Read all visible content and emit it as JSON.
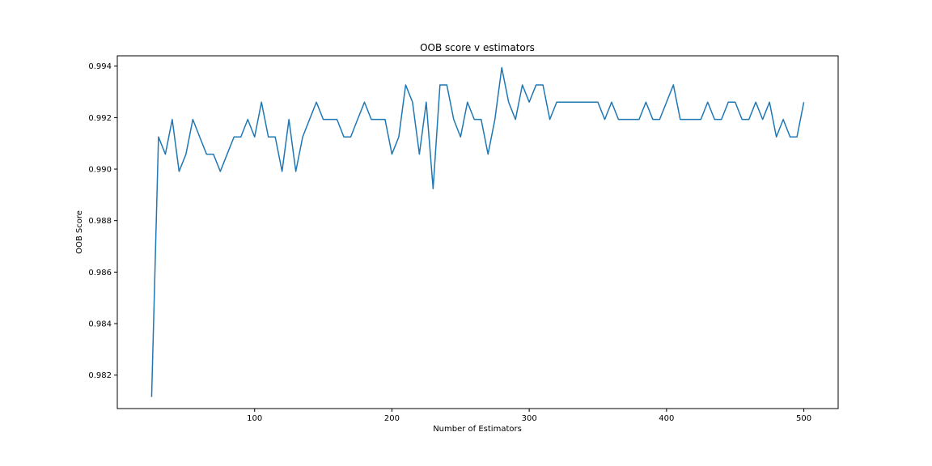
{
  "chart_data": {
    "type": "line",
    "title": "OOB score v estimators",
    "xlabel": "Number of Estimators",
    "ylabel": "OOB Score",
    "xlim": [
      0,
      525
    ],
    "ylim": [
      0.9807,
      0.9944
    ],
    "xticks": [
      100,
      200,
      300,
      400,
      500
    ],
    "yticks": [
      0.982,
      0.984,
      0.986,
      0.988,
      0.99,
      0.992,
      0.994
    ],
    "ytick_labels": [
      "0.982",
      "0.984",
      "0.986",
      "0.988",
      "0.990",
      "0.992",
      "0.994"
    ],
    "grid": false,
    "series": [
      {
        "color": "#1f77b4",
        "x": [
          25,
          30,
          35,
          40,
          45,
          50,
          55,
          60,
          65,
          70,
          75,
          80,
          85,
          90,
          95,
          100,
          105,
          110,
          115,
          120,
          125,
          130,
          135,
          140,
          145,
          150,
          155,
          160,
          165,
          170,
          175,
          180,
          185,
          190,
          195,
          200,
          205,
          210,
          215,
          220,
          225,
          230,
          235,
          240,
          245,
          250,
          255,
          260,
          265,
          270,
          275,
          280,
          285,
          290,
          295,
          300,
          305,
          310,
          315,
          320,
          325,
          330,
          335,
          340,
          345,
          350,
          355,
          360,
          365,
          370,
          375,
          380,
          385,
          390,
          395,
          400,
          405,
          410,
          415,
          420,
          425,
          430,
          435,
          440,
          445,
          450,
          455,
          460,
          465,
          470,
          475,
          480,
          485,
          490,
          495,
          500
        ],
        "y": [
          0.98115,
          0.99125,
          0.99058,
          0.99193,
          0.98991,
          0.99058,
          0.99193,
          0.99125,
          0.99058,
          0.99058,
          0.98991,
          0.99058,
          0.99125,
          0.99125,
          0.99193,
          0.99125,
          0.9926,
          0.99125,
          0.99125,
          0.98991,
          0.99193,
          0.98991,
          0.99125,
          0.99193,
          0.9926,
          0.99193,
          0.99193,
          0.99193,
          0.99125,
          0.99125,
          0.99193,
          0.9926,
          0.99193,
          0.99193,
          0.99193,
          0.99058,
          0.99125,
          0.99327,
          0.9926,
          0.99058,
          0.9926,
          0.98924,
          0.99327,
          0.99327,
          0.99193,
          0.99125,
          0.9926,
          0.99193,
          0.99193,
          0.99058,
          0.99193,
          0.99394,
          0.9926,
          0.99193,
          0.99327,
          0.9926,
          0.99327,
          0.99327,
          0.99193,
          0.9926,
          0.9926,
          0.9926,
          0.9926,
          0.9926,
          0.9926,
          0.9926,
          0.99193,
          0.9926,
          0.99193,
          0.99193,
          0.99193,
          0.99193,
          0.9926,
          0.99193,
          0.99193,
          0.9926,
          0.99327,
          0.99193,
          0.99193,
          0.99193,
          0.99193,
          0.9926,
          0.99193,
          0.99193,
          0.9926,
          0.9926,
          0.99193,
          0.99193,
          0.9926,
          0.99193,
          0.9926,
          0.99125,
          0.99193,
          0.99125,
          0.99125,
          0.9926
        ]
      }
    ]
  }
}
